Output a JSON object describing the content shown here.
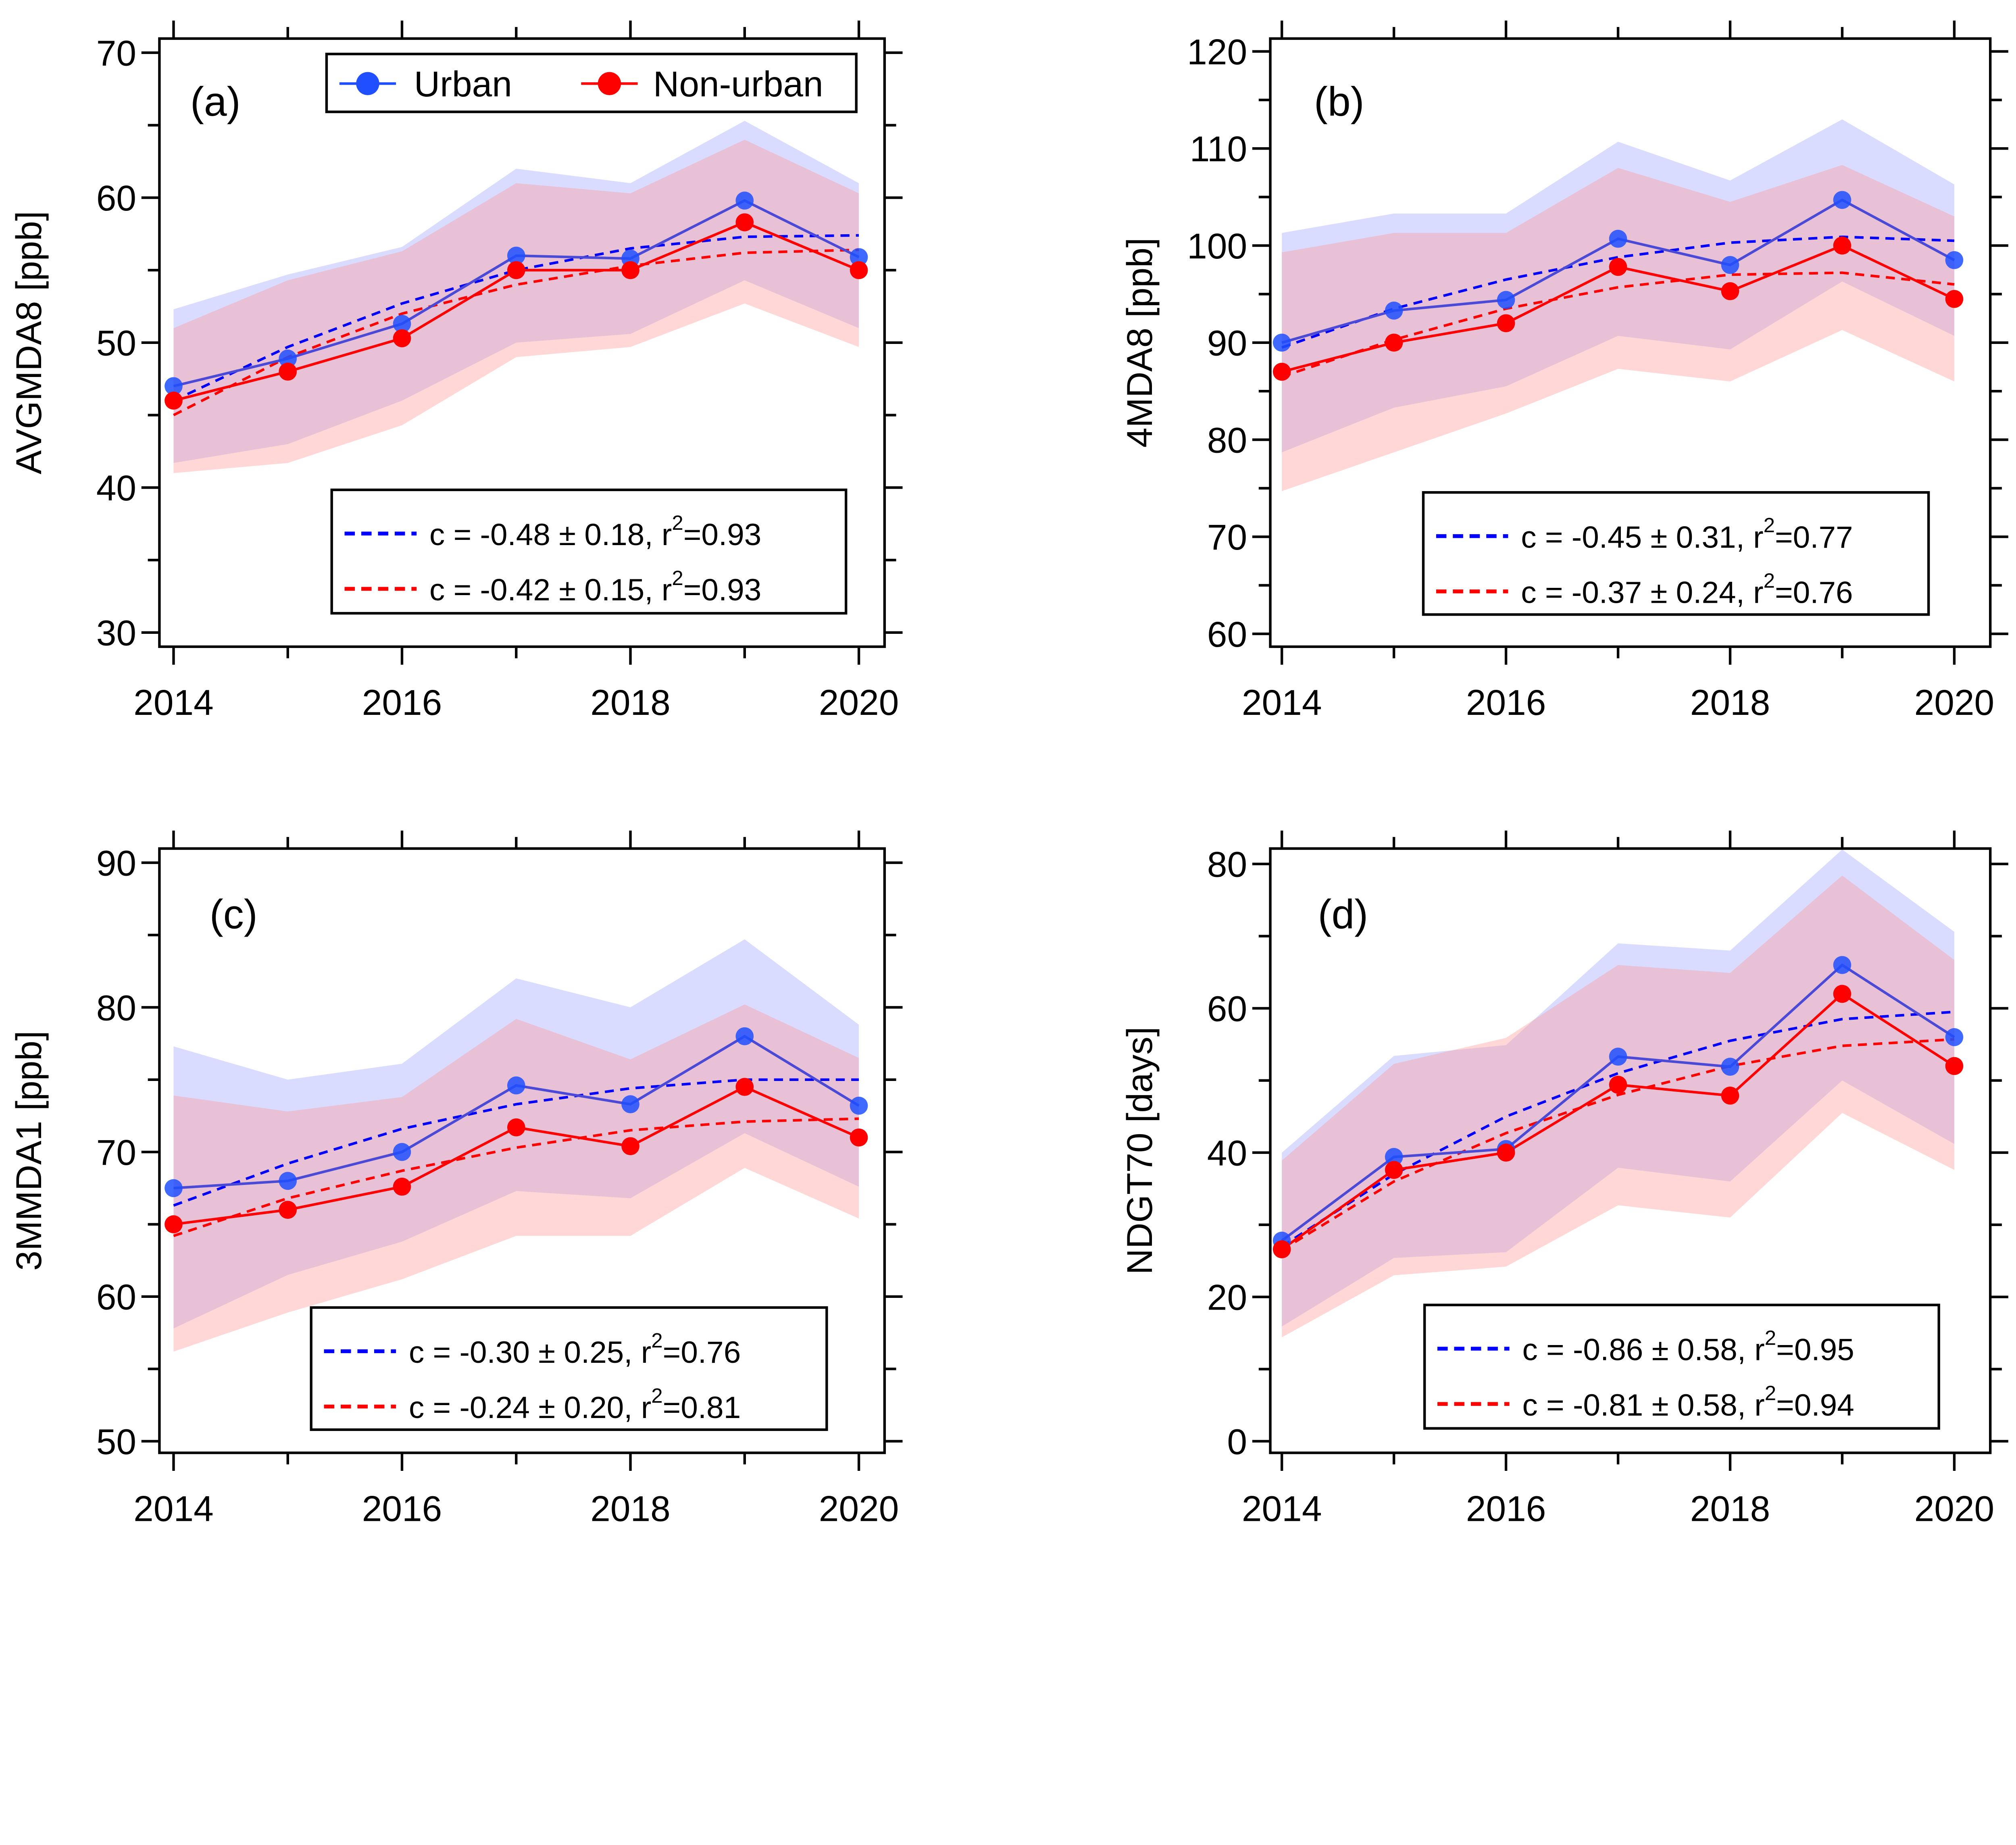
{
  "legend": {
    "entries": [
      {
        "name": "Urban",
        "color": "#1f4fff"
      },
      {
        "name": "Non-urban",
        "color": "#ff0000"
      }
    ]
  },
  "colors": {
    "urban_line": "#4a4ad6",
    "urban_marker": "#1f4fff",
    "urban_band": "#aab0ff",
    "urban_fit": "#0000ff",
    "nonurban_line": "#ff0000",
    "nonurban_marker": "#ff0000",
    "nonurban_band": "#ff9a9a",
    "nonurban_fit": "#ff0000"
  },
  "chart_data": [
    {
      "type": "line",
      "panel_label": "(a)",
      "ylabel": "AVGMDA8 [ppb]",
      "ylim": [
        30,
        70
      ],
      "yticks": [
        30,
        40,
        50,
        60,
        70
      ],
      "x": [
        2014,
        2015,
        2016,
        2017,
        2018,
        2019,
        2020
      ],
      "xticks": [
        2014,
        2016,
        2018,
        2020
      ],
      "series": [
        {
          "name": "Urban",
          "values": [
            47.0,
            48.9,
            51.3,
            56.0,
            55.8,
            59.8,
            55.9
          ],
          "band_upper": [
            52.3,
            54.7,
            56.6,
            62.0,
            61.0,
            65.3,
            61.0
          ],
          "band_lower": [
            41.7,
            43.0,
            46.0,
            50.0,
            50.6,
            54.3,
            51.0
          ],
          "fit": [
            46.0,
            49.7,
            52.7,
            55.0,
            56.5,
            57.3,
            57.4
          ],
          "fit_main": "c = -0.48 ± 0.18, r",
          "fit_sup": "2",
          "fit_end": "=0.93"
        },
        {
          "name": "Non-urban",
          "values": [
            46.0,
            48.0,
            50.3,
            55.0,
            55.0,
            58.3,
            55.0
          ],
          "band_upper": [
            51.0,
            54.3,
            56.3,
            61.0,
            60.3,
            64.0,
            60.3
          ],
          "band_lower": [
            41.0,
            41.7,
            44.3,
            49.0,
            49.7,
            52.7,
            49.7
          ],
          "fit": [
            45.0,
            49.0,
            52.0,
            54.0,
            55.3,
            56.2,
            56.4
          ],
          "fit_main": "c = -0.42 ± 0.15, r",
          "fit_sup": "2",
          "fit_end": "=0.93"
        }
      ]
    },
    {
      "type": "line",
      "panel_label": "(b)",
      "ylabel": "4MDA8 [ppb]",
      "ylim": [
        60,
        120
      ],
      "yticks": [
        60,
        70,
        80,
        90,
        100,
        110,
        120
      ],
      "x": [
        2014,
        2015,
        2016,
        2017,
        2018,
        2019,
        2020
      ],
      "xticks": [
        2014,
        2016,
        2018,
        2020
      ],
      "series": [
        {
          "name": "Urban",
          "values": [
            90.0,
            93.3,
            94.4,
            100.7,
            98.0,
            104.7,
            98.5
          ],
          "band_upper": [
            101.3,
            103.3,
            103.3,
            110.7,
            106.7,
            113.0,
            106.3
          ],
          "band_lower": [
            78.7,
            83.3,
            85.5,
            90.7,
            89.3,
            96.3,
            90.7
          ],
          "fit": [
            89.5,
            93.5,
            96.5,
            98.8,
            100.3,
            100.9,
            100.5
          ],
          "fit_main": "c = -0.45 ± 0.31, r",
          "fit_sup": "2",
          "fit_end": "=0.77"
        },
        {
          "name": "Non-urban",
          "values": [
            87.0,
            90.0,
            92.0,
            97.8,
            95.3,
            100.0,
            94.5
          ],
          "band_upper": [
            99.3,
            101.3,
            101.3,
            108.0,
            104.5,
            108.3,
            103.0
          ],
          "band_lower": [
            74.7,
            78.7,
            82.7,
            87.3,
            86.0,
            91.3,
            86.0
          ],
          "fit": [
            86.5,
            90.3,
            93.5,
            95.7,
            97.0,
            97.2,
            96.0
          ],
          "fit_main": "c = -0.37 ± 0.24, r",
          "fit_sup": "2",
          "fit_end": "=0.76"
        }
      ]
    },
    {
      "type": "line",
      "panel_label": "(c)",
      "ylabel": "3MMDA1 [ppb]",
      "ylim": [
        50,
        90
      ],
      "yticks": [
        50,
        60,
        70,
        80,
        90
      ],
      "x": [
        2014,
        2015,
        2016,
        2017,
        2018,
        2019,
        2020
      ],
      "xticks": [
        2014,
        2016,
        2018,
        2020
      ],
      "series": [
        {
          "name": "Urban",
          "values": [
            67.5,
            68.0,
            70.0,
            74.6,
            73.3,
            78.0,
            73.2
          ],
          "band_upper": [
            77.3,
            75.0,
            76.1,
            82.0,
            80.0,
            84.7,
            78.8
          ],
          "band_lower": [
            57.8,
            61.5,
            63.8,
            67.3,
            66.8,
            71.3,
            67.6
          ],
          "fit": [
            66.3,
            69.2,
            71.6,
            73.3,
            74.4,
            75.0,
            75.0
          ],
          "fit_main": "c = -0.30 ± 0.25, r",
          "fit_sup": "2",
          "fit_end": "=0.76"
        },
        {
          "name": "Non-urban",
          "values": [
            65.0,
            66.0,
            67.6,
            71.7,
            70.4,
            74.5,
            71.0
          ],
          "band_upper": [
            73.9,
            72.8,
            73.8,
            79.2,
            76.4,
            80.2,
            76.5
          ],
          "band_lower": [
            56.2,
            58.9,
            61.2,
            64.2,
            64.2,
            68.9,
            65.4
          ],
          "fit": [
            64.2,
            66.8,
            68.7,
            70.3,
            71.5,
            72.1,
            72.3
          ],
          "fit_main": "c = -0.24 ± 0.20, r",
          "fit_sup": "2",
          "fit_end": "=0.81"
        }
      ]
    },
    {
      "type": "line",
      "panel_label": "(d)",
      "ylabel": "NDGT70 [days]",
      "ylim": [
        0,
        80
      ],
      "yticks": [
        0,
        20,
        40,
        60,
        80
      ],
      "x": [
        2014,
        2015,
        2016,
        2017,
        2018,
        2019,
        2020
      ],
      "xticks": [
        2014,
        2016,
        2018,
        2020
      ],
      "series": [
        {
          "name": "Urban",
          "values": [
            27.8,
            39.4,
            40.5,
            53.3,
            51.9,
            66.0,
            56.0
          ],
          "band_upper": [
            40.0,
            53.4,
            54.9,
            69.0,
            68.0,
            82.0,
            70.6
          ],
          "band_lower": [
            15.9,
            25.4,
            26.2,
            37.9,
            36.0,
            50.0,
            41.2
          ],
          "fit": [
            27.0,
            37.0,
            45.0,
            51.0,
            55.5,
            58.5,
            59.5
          ],
          "fit_main": "c = -0.86 ± 0.58, r",
          "fit_sup": "2",
          "fit_end": "=0.95"
        },
        {
          "name": "Non-urban",
          "values": [
            26.6,
            37.6,
            40.0,
            49.4,
            47.9,
            62.0,
            52.0
          ],
          "band_upper": [
            38.9,
            52.3,
            55.9,
            66.0,
            64.9,
            78.4,
            66.7
          ],
          "band_lower": [
            14.4,
            23.0,
            24.2,
            32.7,
            31.0,
            45.5,
            37.6
          ],
          "fit": [
            26.5,
            36.0,
            42.7,
            48.0,
            52.0,
            54.8,
            55.7
          ],
          "fit_main": "c = -0.81 ± 0.58, r",
          "fit_sup": "2",
          "fit_end": "=0.94"
        }
      ]
    }
  ]
}
